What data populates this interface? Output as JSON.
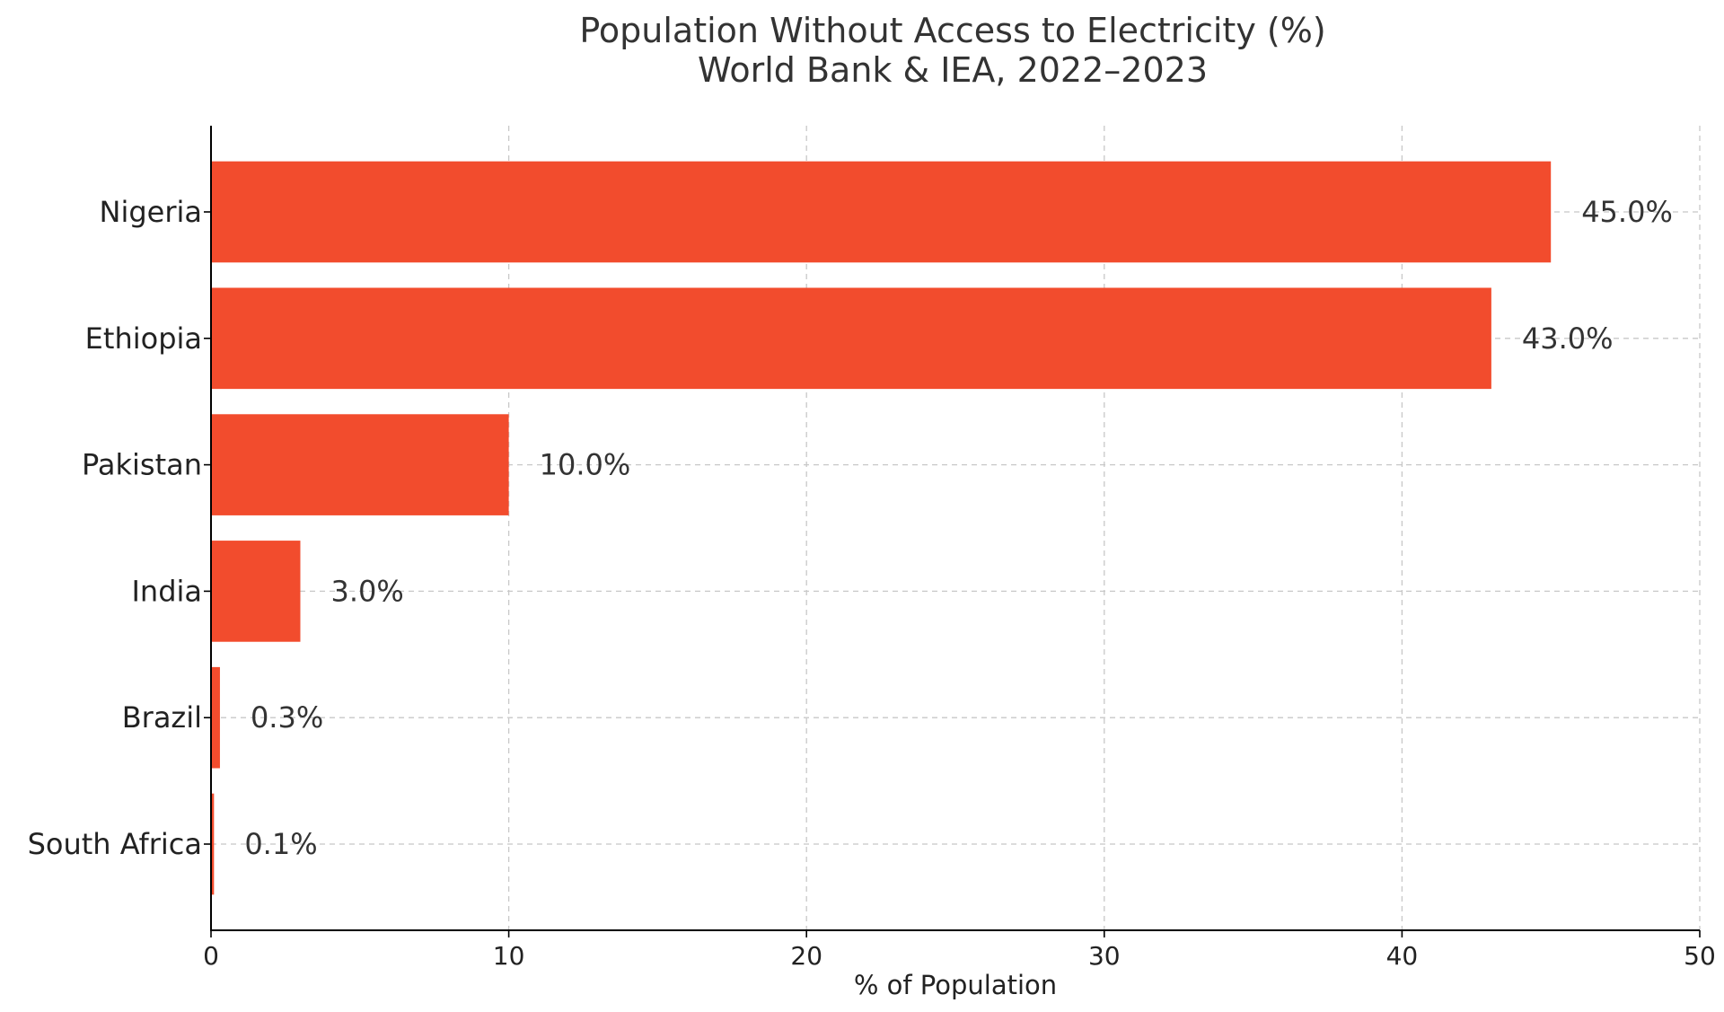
{
  "chart_data": {
    "type": "bar",
    "orientation": "horizontal",
    "title": "Population Without Access to Electricity (%)",
    "subtitle": "World Bank & IEA, 2022–2023",
    "xlabel": "% of Population",
    "ylabel": "",
    "xlim": [
      0,
      50
    ],
    "xticks": [
      0,
      10,
      20,
      30,
      40,
      50
    ],
    "grid": true,
    "categories": [
      "Nigeria",
      "Ethiopia",
      "Pakistan",
      "India",
      "Brazil",
      "South Africa"
    ],
    "values": [
      45.0,
      43.0,
      10.0,
      3.0,
      0.3,
      0.1
    ],
    "value_labels": [
      "45.0%",
      "43.0%",
      "10.0%",
      "3.0%",
      "0.3%",
      "0.1%"
    ],
    "bar_color": "#f24c2d"
  }
}
